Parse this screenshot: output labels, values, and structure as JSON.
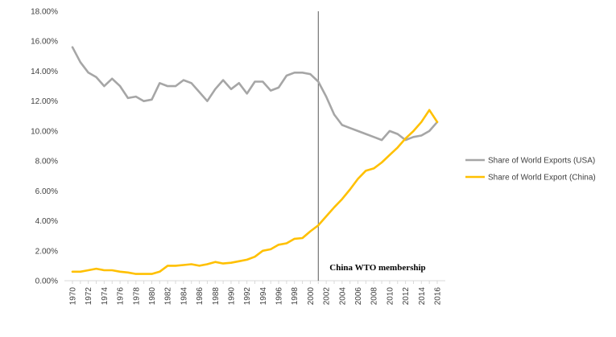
{
  "chart_data": {
    "type": "line",
    "x": [
      1970,
      1971,
      1972,
      1973,
      1974,
      1975,
      1976,
      1977,
      1978,
      1979,
      1980,
      1981,
      1982,
      1983,
      1984,
      1985,
      1986,
      1987,
      1988,
      1989,
      1990,
      1991,
      1992,
      1993,
      1994,
      1995,
      1996,
      1997,
      1998,
      1999,
      2000,
      2001,
      2002,
      2003,
      2004,
      2005,
      2006,
      2007,
      2008,
      2009,
      2010,
      2011,
      2012,
      2013,
      2014,
      2015,
      2016
    ],
    "x_tick_labels": [
      "1970",
      "1972",
      "1974",
      "1976",
      "1978",
      "1980",
      "1982",
      "1984",
      "1986",
      "1988",
      "1990",
      "1992",
      "1994",
      "1996",
      "1998",
      "2000",
      "2002",
      "2004",
      "2006",
      "2008",
      "2010",
      "2012",
      "2014",
      "2016"
    ],
    "y_tick_labels": [
      "0.00%",
      "2.00%",
      "4.00%",
      "6.00%",
      "8.00%",
      "10.00%",
      "12.00%",
      "14.00%",
      "16.00%",
      "18.00%"
    ],
    "ylim": [
      0,
      18
    ],
    "series": [
      {
        "name": "Share of World Exports (USA)",
        "color": "#a6a6a6",
        "values": [
          15.6,
          14.6,
          13.9,
          13.6,
          13.0,
          13.5,
          13.0,
          12.2,
          12.3,
          12.0,
          12.1,
          13.2,
          13.0,
          13.0,
          13.4,
          13.2,
          12.6,
          12.0,
          12.8,
          13.4,
          12.8,
          13.2,
          12.5,
          13.3,
          13.3,
          12.7,
          12.9,
          13.7,
          13.9,
          13.9,
          13.8,
          13.3,
          12.3,
          11.1,
          10.4,
          10.2,
          10.0,
          9.8,
          9.6,
          9.4,
          10.0,
          9.8,
          9.4,
          9.6,
          9.7,
          10.0,
          10.6
        ]
      },
      {
        "name": "Share of World Export (China)",
        "color": "#ffc000",
        "values": [
          0.6,
          0.6,
          0.7,
          0.8,
          0.7,
          0.7,
          0.6,
          0.55,
          0.45,
          0.45,
          0.45,
          0.6,
          1.0,
          1.0,
          1.05,
          1.1,
          1.0,
          1.1,
          1.25,
          1.15,
          1.2,
          1.3,
          1.4,
          1.6,
          2.0,
          2.1,
          2.4,
          2.5,
          2.8,
          2.85,
          3.3,
          3.7,
          4.3,
          4.9,
          5.45,
          6.1,
          6.8,
          7.35,
          7.5,
          7.9,
          8.4,
          8.9,
          9.5,
          10.0,
          10.6,
          11.4,
          10.6
        ]
      }
    ],
    "annotations": [
      {
        "text": "China WTO membership",
        "x": 2001
      }
    ],
    "legend_position": "right",
    "grid": false
  }
}
